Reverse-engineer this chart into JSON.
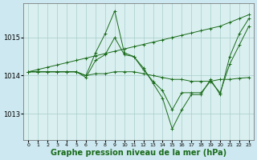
{
  "background_color": "#cde8f0",
  "plot_bg_color": "#daf0f0",
  "grid_color": "#a8cccc",
  "line_color": "#1a6b1a",
  "xlabel": "Graphe pression niveau de la mer (hPa)",
  "xlabel_fontsize": 7,
  "yticks": [
    1013,
    1014,
    1015
  ],
  "xticks": [
    0,
    1,
    2,
    3,
    4,
    5,
    6,
    7,
    8,
    9,
    10,
    11,
    12,
    13,
    14,
    15,
    16,
    17,
    18,
    19,
    20,
    21,
    22,
    23
  ],
  "xlim": [
    -0.5,
    23.5
  ],
  "ylim": [
    1012.3,
    1015.9
  ],
  "series": [
    {
      "x": [
        0,
        1,
        2,
        3,
        4,
        5,
        6,
        7,
        8,
        9,
        10,
        11,
        12,
        13,
        14,
        15,
        16,
        17,
        18,
        19,
        20,
        21,
        22,
        23
      ],
      "y": [
        1014.1,
        1014.1,
        1014.1,
        1014.1,
        1014.1,
        1014.1,
        1014.0,
        1014.6,
        1015.1,
        1015.7,
        1014.6,
        1014.5,
        1014.2,
        1013.8,
        1013.4,
        1012.6,
        1013.1,
        1013.5,
        1013.5,
        1013.9,
        1013.5,
        1014.5,
        1015.1,
        1015.5
      ]
    },
    {
      "x": [
        0,
        1,
        2,
        3,
        4,
        5,
        6,
        7,
        8,
        9,
        10,
        11,
        12,
        13,
        14,
        15,
        16,
        17,
        18,
        19,
        20,
        21,
        22,
        23
      ],
      "y": [
        1014.1,
        1014.16,
        1014.22,
        1014.28,
        1014.34,
        1014.4,
        1014.46,
        1014.52,
        1014.58,
        1014.64,
        1014.7,
        1014.76,
        1014.82,
        1014.88,
        1014.94,
        1015.0,
        1015.06,
        1015.12,
        1015.18,
        1015.24,
        1015.3,
        1015.4,
        1015.5,
        1015.6
      ]
    },
    {
      "x": [
        0,
        1,
        2,
        3,
        4,
        5,
        6,
        7,
        8,
        9,
        10,
        11,
        12,
        13,
        14,
        15,
        16,
        17,
        18,
        19,
        20,
        21,
        22,
        23
      ],
      "y": [
        1014.1,
        1014.1,
        1014.1,
        1014.1,
        1014.1,
        1014.1,
        1013.95,
        1014.4,
        1014.55,
        1015.0,
        1014.55,
        1014.5,
        1014.15,
        1013.85,
        1013.6,
        1013.1,
        1013.55,
        1013.55,
        1013.55,
        1013.85,
        1013.55,
        1014.3,
        1014.8,
        1015.3
      ]
    },
    {
      "x": [
        0,
        1,
        2,
        3,
        4,
        5,
        6,
        7,
        8,
        9,
        10,
        11,
        12,
        13,
        14,
        15,
        16,
        17,
        18,
        19,
        20,
        21,
        22,
        23
      ],
      "y": [
        1014.1,
        1014.1,
        1014.1,
        1014.1,
        1014.1,
        1014.1,
        1014.0,
        1014.05,
        1014.05,
        1014.1,
        1014.1,
        1014.1,
        1014.05,
        1014.0,
        1013.95,
        1013.9,
        1013.9,
        1013.85,
        1013.85,
        1013.85,
        1013.9,
        1013.9,
        1013.93,
        1013.95
      ]
    }
  ]
}
